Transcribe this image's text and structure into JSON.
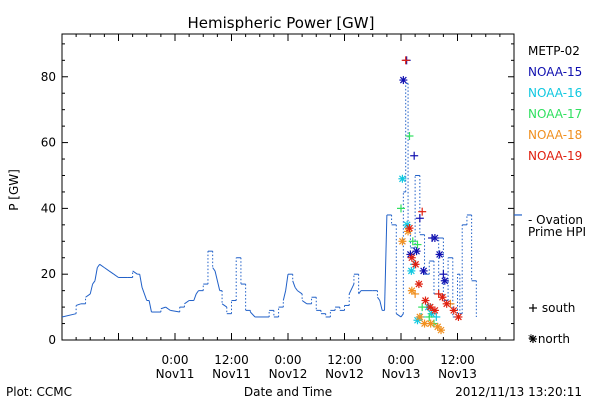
{
  "chart_data": {
    "type": "line",
    "title": "Hemispheric Power [GW]",
    "xlabel": "Date and Time",
    "ylabel": "P [GW]",
    "x_unit": "hours",
    "xlim": [
      -12,
      84
    ],
    "ylim": [
      0,
      93
    ],
    "yticks": [
      0,
      20,
      40,
      60,
      80
    ],
    "xticks": [
      {
        "x": 12,
        "label1": "0:00",
        "label2": "Nov11"
      },
      {
        "x": 24,
        "label1": "12:00",
        "label2": "Nov11"
      },
      {
        "x": 36,
        "label1": "0:00",
        "label2": "Nov12"
      },
      {
        "x": 48,
        "label1": "12:00",
        "label2": "Nov12"
      },
      {
        "x": 60,
        "label1": "0:00",
        "label2": "Nov13"
      },
      {
        "x": 72,
        "label1": "12:00",
        "label2": "Nov13"
      }
    ],
    "ovation": {
      "name": "Ovation Prime HPI",
      "legend_line1": "- Ovation",
      "legend_line2": "Prime HPI",
      "color": "#2060c8",
      "points": [
        [
          -12,
          7
        ],
        [
          -9,
          8
        ],
        [
          -9,
          10.5
        ],
        [
          -8,
          11
        ],
        [
          -7,
          11
        ],
        [
          -7,
          13
        ],
        [
          -6,
          14
        ],
        [
          -5.5,
          17
        ],
        [
          -5,
          18
        ],
        [
          -4.5,
          22
        ],
        [
          -4,
          23
        ],
        [
          -3,
          22
        ],
        [
          -2,
          21
        ],
        [
          -1,
          20
        ],
        [
          0,
          19
        ],
        [
          2,
          19
        ],
        [
          3,
          19
        ],
        [
          3,
          21
        ],
        [
          4,
          20
        ],
        [
          4.5,
          20
        ],
        [
          5,
          16
        ],
        [
          6,
          12
        ],
        [
          6.5,
          12
        ],
        [
          7,
          8.5
        ],
        [
          9,
          8.5
        ],
        [
          9,
          9.5
        ],
        [
          10,
          10
        ],
        [
          11,
          9
        ],
        [
          13,
          8.5
        ],
        [
          13,
          10
        ],
        [
          14,
          10
        ],
        [
          14,
          11
        ],
        [
          15,
          12
        ],
        [
          16,
          12
        ],
        [
          16.5,
          14
        ],
        [
          17,
          15
        ],
        [
          18,
          15
        ],
        [
          18,
          17
        ],
        [
          19,
          17
        ],
        [
          19,
          27
        ],
        [
          20,
          27
        ],
        [
          20,
          22
        ],
        [
          20.5,
          21
        ],
        [
          21.5,
          15
        ],
        [
          22,
          15
        ],
        [
          22,
          11
        ],
        [
          23,
          10
        ],
        [
          23,
          8
        ],
        [
          24,
          8
        ],
        [
          24,
          12
        ],
        [
          25,
          12
        ],
        [
          25,
          25
        ],
        [
          26,
          25
        ],
        [
          26,
          17
        ],
        [
          27,
          17
        ],
        [
          27,
          9
        ],
        [
          28,
          9
        ],
        [
          28,
          8.5
        ],
        [
          29,
          7
        ],
        [
          32,
          7
        ],
        [
          32,
          9
        ],
        [
          33,
          9
        ],
        [
          33,
          7
        ],
        [
          34,
          7
        ],
        [
          34,
          10
        ],
        [
          35,
          10
        ],
        [
          35,
          12
        ],
        [
          35.5,
          15
        ],
        [
          36,
          20
        ],
        [
          37,
          20
        ],
        [
          37,
          18
        ],
        [
          37.5,
          16
        ],
        [
          38,
          15
        ],
        [
          39,
          14
        ],
        [
          39,
          12
        ],
        [
          40,
          11
        ],
        [
          41,
          11
        ],
        [
          41,
          13
        ],
        [
          42,
          13
        ],
        [
          42,
          9
        ],
        [
          43,
          9
        ],
        [
          43,
          8
        ],
        [
          44,
          8
        ],
        [
          44,
          7
        ],
        [
          45,
          7
        ],
        [
          45,
          9
        ],
        [
          46,
          9
        ],
        [
          46,
          10
        ],
        [
          47,
          10
        ],
        [
          47,
          9
        ],
        [
          48,
          9
        ],
        [
          48,
          10.5
        ],
        [
          49,
          10.5
        ],
        [
          49,
          14
        ],
        [
          50,
          17
        ],
        [
          50,
          20
        ],
        [
          51,
          20
        ],
        [
          51,
          14
        ],
        [
          51.5,
          15
        ],
        [
          54,
          15
        ],
        [
          55,
          15
        ],
        [
          55,
          13
        ],
        [
          55.5,
          12
        ],
        [
          56,
          9
        ],
        [
          56.5,
          9
        ],
        [
          57,
          38
        ],
        [
          58,
          38
        ],
        [
          58,
          35
        ],
        [
          59,
          35
        ],
        [
          59,
          8
        ],
        [
          60,
          7
        ],
        [
          60.5,
          8
        ],
        [
          60.5,
          45
        ],
        [
          61,
          45
        ],
        [
          61,
          78
        ],
        [
          61.5,
          78
        ],
        [
          61.5,
          33
        ],
        [
          62,
          33
        ],
        [
          62,
          28
        ],
        [
          63,
          28
        ],
        [
          63,
          50
        ],
        [
          64,
          50
        ],
        [
          64,
          32
        ],
        [
          65,
          32
        ],
        [
          65,
          20
        ],
        [
          66,
          20
        ],
        [
          66,
          24
        ],
        [
          67,
          24
        ],
        [
          67,
          14
        ],
        [
          68,
          14
        ],
        [
          68,
          31
        ],
        [
          69,
          31
        ],
        [
          69,
          12
        ],
        [
          70,
          12
        ],
        [
          70,
          25
        ],
        [
          71,
          25
        ],
        [
          71,
          7
        ],
        [
          72,
          7
        ],
        [
          72,
          20
        ],
        [
          72.5,
          20
        ],
        [
          72.5,
          8
        ],
        [
          73,
          8
        ],
        [
          73,
          35
        ],
        [
          74,
          35
        ],
        [
          74,
          38
        ],
        [
          75,
          38
        ],
        [
          75,
          18
        ],
        [
          76,
          18
        ],
        [
          76,
          7
        ]
      ]
    },
    "series": [
      {
        "name": "METP-02",
        "color": "#000000",
        "marker_color": "#8b0000",
        "points": []
      },
      {
        "name": "NOAA-15",
        "color": "#1010b0",
        "points": [
          {
            "x": 60.5,
            "y": 79,
            "m": "n"
          },
          {
            "x": 61.2,
            "y": 85,
            "m": "s"
          },
          {
            "x": 62,
            "y": 26,
            "m": "n"
          },
          {
            "x": 62.8,
            "y": 56,
            "m": "s"
          },
          {
            "x": 63.3,
            "y": 27,
            "m": "n"
          },
          {
            "x": 64,
            "y": 37,
            "m": "s"
          },
          {
            "x": 64.8,
            "y": 21,
            "m": "n"
          },
          {
            "x": 66.6,
            "y": 31,
            "m": "s"
          },
          {
            "x": 67.2,
            "y": 31,
            "m": "n"
          },
          {
            "x": 68.2,
            "y": 26,
            "m": "n"
          },
          {
            "x": 69.3,
            "y": 18,
            "m": "n"
          },
          {
            "x": 69,
            "y": 20,
            "m": "s"
          }
        ]
      },
      {
        "name": "NOAA-16",
        "color": "#10c8e0",
        "points": [
          {
            "x": 60.3,
            "y": 49,
            "m": "n"
          },
          {
            "x": 61.3,
            "y": 35,
            "m": "n"
          },
          {
            "x": 62.2,
            "y": 21,
            "m": "n"
          },
          {
            "x": 62.8,
            "y": 23,
            "m": "s"
          },
          {
            "x": 63.5,
            "y": 6,
            "m": "n"
          },
          {
            "x": 64.3,
            "y": 7,
            "m": "s"
          },
          {
            "x": 65.8,
            "y": 10,
            "m": "n"
          },
          {
            "x": 66.5,
            "y": 8,
            "m": "n"
          },
          {
            "x": 67.5,
            "y": 7,
            "m": "s"
          }
        ]
      },
      {
        "name": "NOAA-17",
        "color": "#30e060",
        "points": [
          {
            "x": 60,
            "y": 40,
            "m": "s"
          },
          {
            "x": 61.8,
            "y": 62,
            "m": "s"
          },
          {
            "x": 62.5,
            "y": 30,
            "m": "s"
          },
          {
            "x": 63.5,
            "y": 29,
            "m": "s"
          },
          {
            "x": 64.5,
            "y": 10,
            "m": "s"
          },
          {
            "x": 66,
            "y": 7,
            "m": "s"
          },
          {
            "x": 67,
            "y": 5,
            "m": "s"
          }
        ]
      },
      {
        "name": "NOAA-18",
        "color": "#f09020",
        "points": [
          {
            "x": 60.3,
            "y": 30,
            "m": "n"
          },
          {
            "x": 61.5,
            "y": 33,
            "m": "n"
          },
          {
            "x": 62.3,
            "y": 15,
            "m": "n"
          },
          {
            "x": 63,
            "y": 14,
            "m": "s"
          },
          {
            "x": 64,
            "y": 7,
            "m": "n"
          },
          {
            "x": 65,
            "y": 5,
            "m": "n"
          },
          {
            "x": 66.3,
            "y": 5,
            "m": "n"
          },
          {
            "x": 67.8,
            "y": 4,
            "m": "n"
          },
          {
            "x": 68.5,
            "y": 3,
            "m": "n"
          },
          {
            "x": 70.5,
            "y": 11,
            "m": "s"
          }
        ]
      },
      {
        "name": "NOAA-19",
        "color": "#e02010",
        "points": [
          {
            "x": 61,
            "y": 85,
            "m": "s"
          },
          {
            "x": 61.8,
            "y": 34,
            "m": "n"
          },
          {
            "x": 62.3,
            "y": 25,
            "m": "n"
          },
          {
            "x": 63.1,
            "y": 23,
            "m": "n"
          },
          {
            "x": 63.8,
            "y": 17,
            "m": "n"
          },
          {
            "x": 64.5,
            "y": 39,
            "m": "s"
          },
          {
            "x": 65.2,
            "y": 12,
            "m": "n"
          },
          {
            "x": 66.2,
            "y": 10,
            "m": "n"
          },
          {
            "x": 67.2,
            "y": 9,
            "m": "n"
          },
          {
            "x": 68,
            "y": 14,
            "m": "s"
          },
          {
            "x": 68.8,
            "y": 13,
            "m": "n"
          },
          {
            "x": 69.7,
            "y": 11,
            "m": "n"
          },
          {
            "x": 71.2,
            "y": 9,
            "m": "n"
          },
          {
            "x": 72.2,
            "y": 7,
            "m": "n"
          }
        ]
      }
    ],
    "marker_legend": {
      "south": "+ south",
      "north": "* north"
    },
    "grid": false,
    "legend_placement": "right"
  },
  "footer": {
    "plot_credit": "Plot: CCMC",
    "timestamp": "2012/11/13 13:20:11"
  }
}
